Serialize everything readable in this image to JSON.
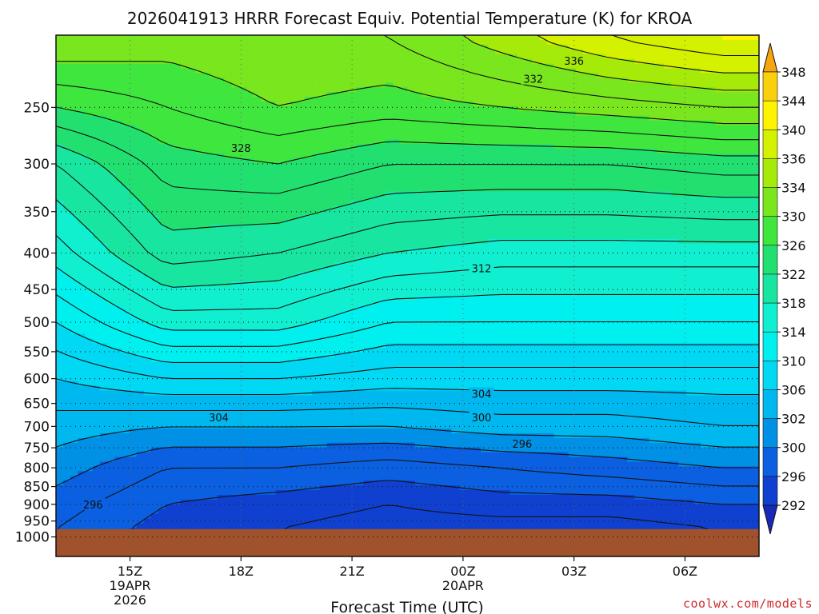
{
  "chart_data": {
    "type": "heatmap",
    "title": "2026041913 HRRR Forecast Equiv. Potential Temperature (K) for KROA",
    "xlabel": "Forecast Time (UTC)",
    "ylabel": "",
    "y_axis_scale": "log",
    "y_axis_inverted": true,
    "x_ticks": [
      {
        "hour": 2,
        "label": "15Z",
        "sub1": "19APR",
        "sub2": "2026"
      },
      {
        "hour": 5,
        "label": "18Z",
        "sub1": "",
        "sub2": ""
      },
      {
        "hour": 8,
        "label": "21Z",
        "sub1": "",
        "sub2": ""
      },
      {
        "hour": 11,
        "label": "00Z",
        "sub1": "20APR",
        "sub2": ""
      },
      {
        "hour": 14,
        "label": "03Z",
        "sub1": "",
        "sub2": ""
      },
      {
        "hour": 17,
        "label": "06Z",
        "sub1": "",
        "sub2": ""
      }
    ],
    "y_ticks": [
      "250",
      "300",
      "350",
      "400",
      "450",
      "500",
      "550",
      "600",
      "650",
      "700",
      "750",
      "800",
      "850",
      "900",
      "950",
      "1000"
    ],
    "grid": true,
    "colorbar": {
      "levels": [
        "348",
        "344",
        "340",
        "336",
        "334",
        "330",
        "326",
        "322",
        "318",
        "314",
        "310",
        "306",
        "302",
        "300",
        "296",
        "292"
      ],
      "colors": [
        "#f5a60d",
        "#fad00d",
        "#fff400",
        "#d4f200",
        "#a6ea0a",
        "#79e61e",
        "#3ee63e",
        "#22e070",
        "#18e6a0",
        "#10f0d0",
        "#00f0f0",
        "#00d8f4",
        "#00b8f0",
        "#0090e6",
        "#0a60e0",
        "#1040d0",
        "#1828b8"
      ],
      "placement": "right"
    },
    "contour_labels": [
      {
        "text": "336",
        "hour": 14.0,
        "p": 215
      },
      {
        "text": "332",
        "hour": 12.9,
        "p": 228
      },
      {
        "text": "328",
        "hour": 5.0,
        "p": 285
      },
      {
        "text": "312",
        "hour": 11.5,
        "p": 420
      },
      {
        "text": "304",
        "hour": 11.5,
        "p": 630
      },
      {
        "text": "300",
        "hour": 11.5,
        "p": 680
      },
      {
        "text": "304",
        "hour": 4.4,
        "p": 680
      },
      {
        "text": "296",
        "hour": 12.6,
        "p": 740
      },
      {
        "text": "296",
        "hour": 1.0,
        "p": 900
      }
    ],
    "theta_e_profiles": [
      {
        "hour": 0,
        "values": [
          332,
          326,
          320,
          315,
          310,
          306,
          303,
          301,
          299,
          298
        ]
      },
      {
        "hour": 3,
        "values": [
          331,
          328,
          325,
          321,
          315,
          308,
          302,
          298,
          296,
          295
        ]
      },
      {
        "hour": 6,
        "values": [
          332,
          330,
          326,
          320,
          315,
          308,
          302,
          298,
          295,
          294
        ]
      },
      {
        "hour": 9,
        "values": [
          332,
          329,
          324,
          318,
          312,
          307,
          302,
          297,
          294,
          293
        ]
      },
      {
        "hour": 12,
        "values": [
          335,
          330,
          324,
          317,
          312,
          307,
          303,
          298,
          295,
          293
        ]
      },
      {
        "hour": 15,
        "values": [
          338,
          331,
          324,
          317,
          312,
          307,
          303,
          299,
          295,
          293
        ]
      },
      {
        "hour": 18,
        "values": [
          340,
          332,
          325,
          317,
          312,
          307,
          304,
          300,
          296,
          294
        ]
      }
    ],
    "profile_pressures": [
      200,
      250,
      300,
      400,
      500,
      600,
      700,
      800,
      900,
      975
    ],
    "surface_pressure": 975
  },
  "credit": "coolwx.com/models"
}
